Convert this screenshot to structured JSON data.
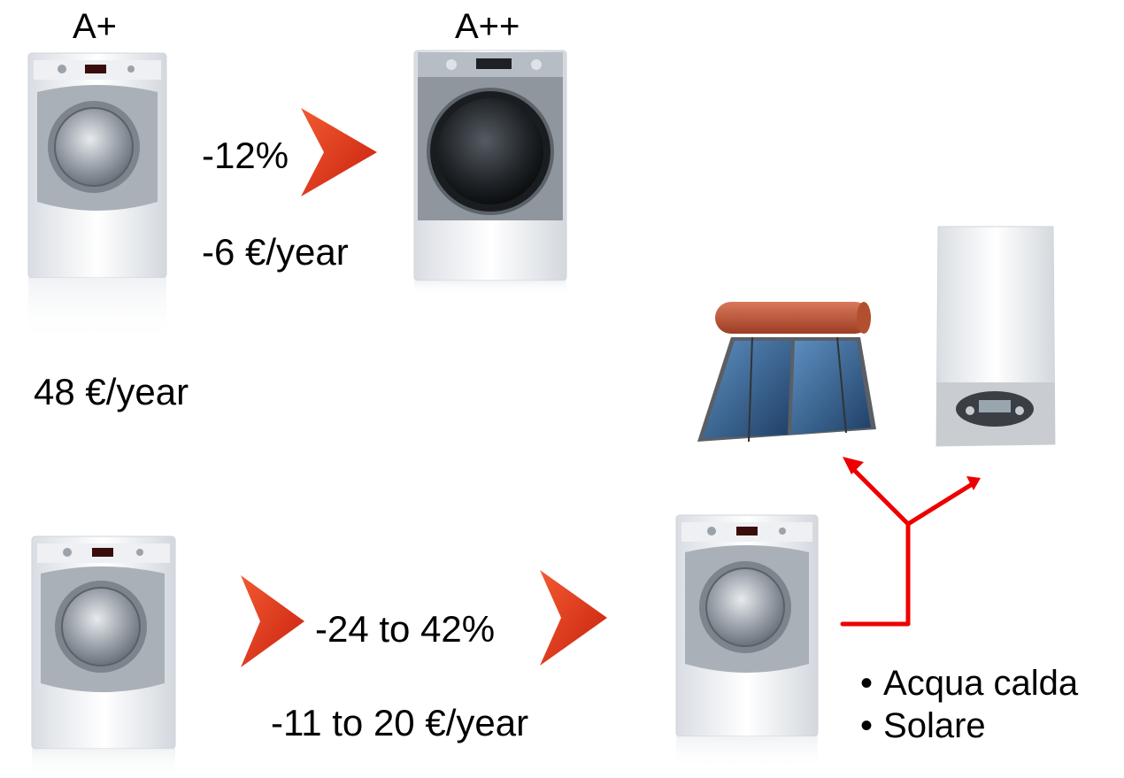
{
  "labels": {
    "a_plus": "A+",
    "a_plus_plus": "A++",
    "saving_pct_top": "-12%",
    "saving_eur_top": "-6 €/year",
    "baseline_cost": "48 €/year",
    "saving_pct_bottom": "-24 to 42%",
    "saving_eur_bottom": "-11 to 20 €/year"
  },
  "bullets": [
    "Acqua calda",
    "Solare"
  ],
  "colors": {
    "chevron": "#e2361c",
    "connector": "#ee0000",
    "washer_body": "#f2f4f7",
    "washer_door": "#8d939b",
    "boiler": "#eceef1",
    "tank": "#c4593c",
    "panel": "#2e5a8a"
  },
  "icons": {
    "chevron": "chevron-right-icon",
    "washer": "washing-machine-icon",
    "solar": "solar-water-heater-icon",
    "boiler": "wall-boiler-icon"
  }
}
